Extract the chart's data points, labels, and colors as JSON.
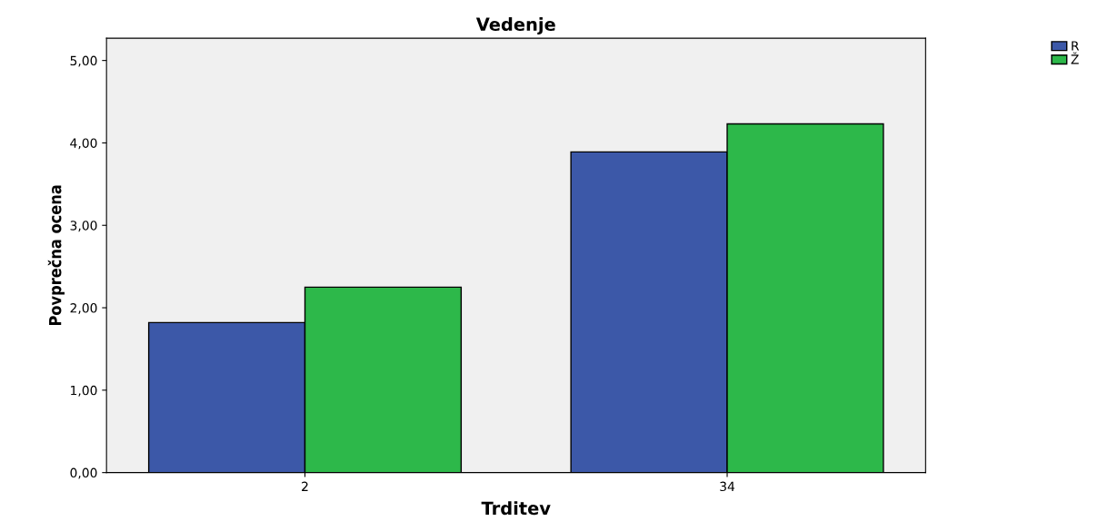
{
  "chart_data": {
    "type": "bar",
    "title": "Vedenje",
    "xlabel": "Trditev",
    "ylabel": "Povprečna ocena",
    "categories": [
      "2",
      "34"
    ],
    "series": [
      {
        "name": "R",
        "color": "#3c58a8",
        "values": [
          1.82,
          3.89
        ]
      },
      {
        "name": "Ž",
        "color": "#2db84a",
        "values": [
          2.25,
          4.23
        ]
      }
    ],
    "ylim": [
      0,
      5.27
    ],
    "yticks": [
      {
        "value": 0,
        "label": "0,00"
      },
      {
        "value": 1,
        "label": "1,00"
      },
      {
        "value": 2,
        "label": "2,00"
      },
      {
        "value": 3,
        "label": "3,00"
      },
      {
        "value": 4,
        "label": "4,00"
      },
      {
        "value": 5,
        "label": "5,00"
      }
    ],
    "grid": false,
    "legend": "top right"
  }
}
